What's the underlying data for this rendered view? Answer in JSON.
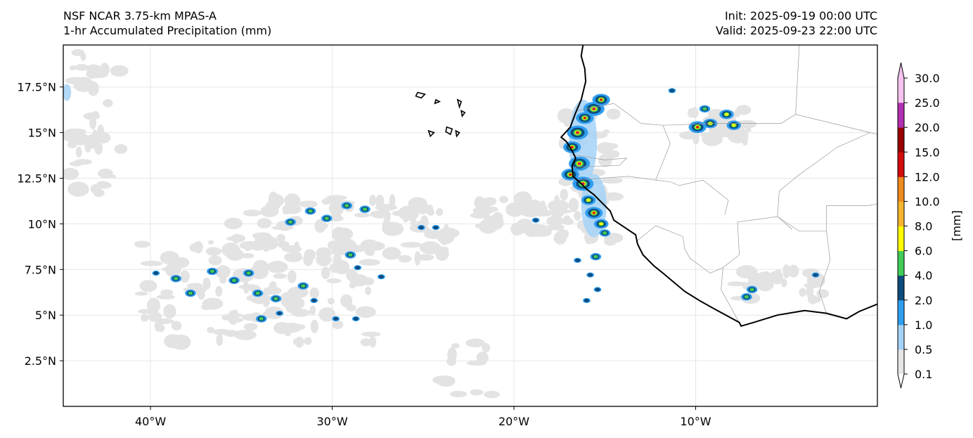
{
  "header": {
    "model": "NSF NCAR 3.75-km MPAS-A",
    "field": "1-hr Accumulated Precipitation (mm)",
    "init": "Init: 2025-09-19 00:00 UTC",
    "valid": "Valid: 2025-09-23 22:00 UTC"
  },
  "map": {
    "lon_range": [
      -44.8,
      0.0
    ],
    "lat_range": [
      0.0,
      19.8
    ],
    "lon_ticks": [
      {
        "value": -40,
        "label": "40°W"
      },
      {
        "value": -30,
        "label": "30°W"
      },
      {
        "value": -20,
        "label": "20°W"
      },
      {
        "value": -10,
        "label": "10°W"
      }
    ],
    "lat_ticks": [
      {
        "value": 2.5,
        "label": "2.5°N"
      },
      {
        "value": 5,
        "label": "5°N"
      },
      {
        "value": 7.5,
        "label": "7.5°N"
      },
      {
        "value": 10,
        "label": "10°N"
      },
      {
        "value": 12.5,
        "label": "12.5°N"
      },
      {
        "value": 15,
        "label": "15°N"
      },
      {
        "value": 17.5,
        "label": "17.5°N"
      }
    ],
    "coastline": [
      [
        -16.2,
        19.8
      ],
      [
        -16.3,
        19.2
      ],
      [
        -16.1,
        18.5
      ],
      [
        -16.05,
        17.8
      ],
      [
        -16.3,
        16.8
      ],
      [
        -16.6,
        16.1
      ],
      [
        -16.9,
        15.3
      ],
      [
        -17.4,
        14.75
      ],
      [
        -17.1,
        14.5
      ],
      [
        -16.8,
        14.0
      ],
      [
        -16.6,
        13.6
      ],
      [
        -16.8,
        13.2
      ],
      [
        -16.75,
        12.6
      ],
      [
        -16.4,
        12.3
      ],
      [
        -16.0,
        11.9
      ],
      [
        -15.6,
        11.6
      ],
      [
        -15.2,
        11.2
      ],
      [
        -14.7,
        10.7
      ],
      [
        -14.5,
        10.2
      ],
      [
        -13.9,
        9.8
      ],
      [
        -13.3,
        9.4
      ],
      [
        -13.2,
        8.9
      ],
      [
        -12.9,
        8.3
      ],
      [
        -12.3,
        7.7
      ],
      [
        -11.8,
        7.3
      ],
      [
        -11.2,
        6.8
      ],
      [
        -10.6,
        6.3
      ],
      [
        -9.8,
        5.8
      ],
      [
        -8.9,
        5.3
      ],
      [
        -7.6,
        4.6
      ],
      [
        -7.5,
        4.4
      ],
      [
        -6.8,
        4.6
      ],
      [
        -5.5,
        5.0
      ],
      [
        -4.0,
        5.25
      ],
      [
        -2.8,
        5.1
      ],
      [
        -1.7,
        4.8
      ],
      [
        -1.0,
        5.2
      ],
      [
        0.0,
        5.6
      ]
    ],
    "islands": [
      [
        [
          -25.3,
          17.2
        ],
        [
          -24.9,
          17.1
        ],
        [
          -25.1,
          16.9
        ],
        [
          -25.4,
          17.0
        ]
      ],
      [
        [
          -24.3,
          16.8
        ],
        [
          -24.1,
          16.7
        ],
        [
          -24.35,
          16.6
        ]
      ],
      [
        [
          -23.1,
          16.8
        ],
        [
          -22.9,
          16.7
        ],
        [
          -23.0,
          16.4
        ]
      ],
      [
        [
          -22.9,
          16.2
        ],
        [
          -22.7,
          16.1
        ],
        [
          -22.85,
          15.9
        ]
      ],
      [
        [
          -24.7,
          15.1
        ],
        [
          -24.4,
          15.0
        ],
        [
          -24.6,
          14.8
        ]
      ],
      [
        [
          -23.7,
          15.3
        ],
        [
          -23.4,
          15.2
        ],
        [
          -23.5,
          14.9
        ],
        [
          -23.75,
          15.05
        ]
      ],
      [
        [
          -23.2,
          15.1
        ],
        [
          -23.0,
          15.0
        ],
        [
          -23.15,
          14.8
        ]
      ]
    ],
    "borders": [
      [
        [
          -16.5,
          16.2
        ],
        [
          -14.5,
          16.6
        ],
        [
          -13.0,
          15.5
        ],
        [
          -11.8,
          15.4
        ],
        [
          -9.0,
          15.5
        ],
        [
          -5.3,
          15.5
        ],
        [
          -4.5,
          16.0
        ],
        [
          -4.3,
          19.8
        ]
      ],
      [
        [
          -11.8,
          15.4
        ],
        [
          -11.4,
          14.4
        ],
        [
          -12.2,
          12.4
        ]
      ],
      [
        [
          -16.8,
          13.8
        ],
        [
          -15.0,
          13.5
        ],
        [
          -13.8,
          13.6
        ],
        [
          -14.2,
          13.2
        ],
        [
          -16.8,
          13.1
        ]
      ],
      [
        [
          -16.7,
          12.4
        ],
        [
          -13.7,
          12.6
        ],
        [
          -12.2,
          12.4
        ],
        [
          -11.4,
          12.3
        ],
        [
          -10.9,
          12.1
        ],
        [
          -9.6,
          12.4
        ],
        [
          -8.2,
          11.3
        ],
        [
          -8.4,
          10.5
        ]
      ],
      [
        [
          -13.3,
          9.0
        ],
        [
          -12.2,
          9.9
        ],
        [
          -10.7,
          9.3
        ],
        [
          -10.6,
          8.6
        ],
        [
          -10.3,
          8.1
        ],
        [
          -9.2,
          7.3
        ],
        [
          -8.5,
          7.6
        ],
        [
          -7.6,
          8.3
        ],
        [
          -7.7,
          10.1
        ],
        [
          -6.2,
          10.3
        ],
        [
          -5.5,
          10.4
        ],
        [
          -4.7,
          9.7
        ]
      ],
      [
        [
          -8.5,
          7.6
        ],
        [
          -8.6,
          6.4
        ],
        [
          -7.5,
          4.4
        ]
      ],
      [
        [
          -5.5,
          10.4
        ],
        [
          -4.3,
          9.6
        ],
        [
          -2.8,
          9.6
        ],
        [
          -2.6,
          8.0
        ],
        [
          -3.2,
          6.3
        ],
        [
          -2.8,
          5.1
        ]
      ],
      [
        [
          -2.8,
          11.0
        ],
        [
          -0.5,
          11.0
        ],
        [
          0.0,
          11.1
        ]
      ],
      [
        [
          -2.8,
          11.0
        ],
        [
          -2.8,
          9.6
        ]
      ],
      [
        [
          -5.5,
          10.4
        ],
        [
          -5.4,
          11.8
        ],
        [
          -4.3,
          12.7
        ],
        [
          -2.2,
          14.2
        ],
        [
          -0.4,
          15.0
        ],
        [
          0.0,
          14.9
        ]
      ],
      [
        [
          -4.5,
          16.0
        ],
        [
          -0.4,
          15.0
        ]
      ]
    ],
    "cells": [
      {
        "lon": -16.1,
        "lat": 15.8,
        "level": 4
      },
      {
        "lon": -15.6,
        "lat": 16.3,
        "level": 5
      },
      {
        "lon": -15.2,
        "lat": 16.8,
        "level": 4
      },
      {
        "lon": -16.5,
        "lat": 15.0,
        "level": 5
      },
      {
        "lon": -16.8,
        "lat": 14.2,
        "level": 4
      },
      {
        "lon": -16.4,
        "lat": 13.3,
        "level": 5
      },
      {
        "lon": -16.9,
        "lat": 12.7,
        "level": 4
      },
      {
        "lon": -16.2,
        "lat": 12.2,
        "level": 5
      },
      {
        "lon": -15.9,
        "lat": 11.3,
        "level": 3
      },
      {
        "lon": -15.6,
        "lat": 10.6,
        "level": 4
      },
      {
        "lon": -15.2,
        "lat": 10.0,
        "level": 3
      },
      {
        "lon": -15.0,
        "lat": 9.5,
        "level": 2
      },
      {
        "lon": -9.9,
        "lat": 15.3,
        "level": 4
      },
      {
        "lon": -9.2,
        "lat": 15.5,
        "level": 3
      },
      {
        "lon": -8.3,
        "lat": 16.0,
        "level": 3
      },
      {
        "lon": -7.9,
        "lat": 15.4,
        "level": 3
      },
      {
        "lon": -9.5,
        "lat": 16.3,
        "level": 2
      },
      {
        "lon": -11.3,
        "lat": 17.3,
        "level": 1
      },
      {
        "lon": -6.9,
        "lat": 6.4,
        "level": 2
      },
      {
        "lon": -7.2,
        "lat": 6.0,
        "level": 2
      },
      {
        "lon": -3.4,
        "lat": 7.2,
        "level": 1
      },
      {
        "lon": -15.5,
        "lat": 8.2,
        "level": 2
      },
      {
        "lon": -16.5,
        "lat": 8.0,
        "level": 1
      },
      {
        "lon": -15.8,
        "lat": 7.2,
        "level": 1
      },
      {
        "lon": -15.4,
        "lat": 6.4,
        "level": 1
      },
      {
        "lon": -16.0,
        "lat": 5.8,
        "level": 1
      },
      {
        "lon": -18.8,
        "lat": 10.2,
        "level": 1
      },
      {
        "lon": -38.6,
        "lat": 7.0,
        "level": 2
      },
      {
        "lon": -37.8,
        "lat": 6.2,
        "level": 2
      },
      {
        "lon": -36.6,
        "lat": 7.4,
        "level": 2
      },
      {
        "lon": -35.4,
        "lat": 6.9,
        "level": 2
      },
      {
        "lon": -34.6,
        "lat": 7.3,
        "level": 2
      },
      {
        "lon": -34.1,
        "lat": 6.2,
        "level": 2
      },
      {
        "lon": -33.1,
        "lat": 5.9,
        "level": 2
      },
      {
        "lon": -33.9,
        "lat": 4.8,
        "level": 2
      },
      {
        "lon": -32.9,
        "lat": 5.1,
        "level": 1
      },
      {
        "lon": -31.6,
        "lat": 6.6,
        "level": 2
      },
      {
        "lon": -31.0,
        "lat": 5.8,
        "level": 1
      },
      {
        "lon": -39.7,
        "lat": 7.3,
        "level": 1
      },
      {
        "lon": -32.3,
        "lat": 10.1,
        "level": 2
      },
      {
        "lon": -31.2,
        "lat": 10.7,
        "level": 2
      },
      {
        "lon": -30.3,
        "lat": 10.3,
        "level": 2
      },
      {
        "lon": -29.2,
        "lat": 11.0,
        "level": 2
      },
      {
        "lon": -28.2,
        "lat": 10.8,
        "level": 2
      },
      {
        "lon": -29.0,
        "lat": 8.3,
        "level": 2
      },
      {
        "lon": -28.6,
        "lat": 7.6,
        "level": 1
      },
      {
        "lon": -27.3,
        "lat": 7.1,
        "level": 1
      },
      {
        "lon": -25.1,
        "lat": 9.8,
        "level": 1
      },
      {
        "lon": -24.3,
        "lat": 9.8,
        "level": 1
      },
      {
        "lon": -29.8,
        "lat": 4.8,
        "level": 1
      },
      {
        "lon": -28.7,
        "lat": 4.8,
        "level": 1
      }
    ]
  },
  "colorbar": {
    "label": "[mm]",
    "levels": [
      "0.1",
      "0.5",
      "1.0",
      "2.0",
      "4.0",
      "6.0",
      "8.0",
      "10.0",
      "12.0",
      "15.0",
      "20.0",
      "25.0",
      "30.0"
    ],
    "colors": [
      "#e5e5e5",
      "#a5d2f7",
      "#2f9ef1",
      "#0d4c7d",
      "#41cc58",
      "#fdfd00",
      "#f5b52e",
      "#ef8a1e",
      "#d30c0c",
      "#990000",
      "#b030b0",
      "#f5c2ef"
    ]
  }
}
